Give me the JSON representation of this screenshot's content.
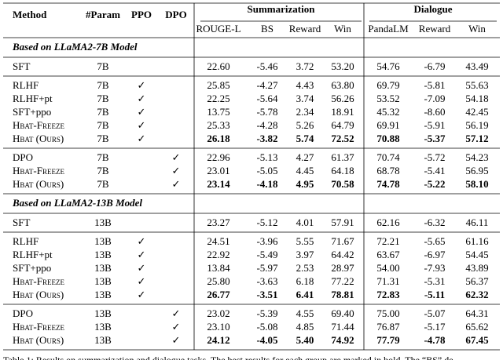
{
  "header": {
    "columns": [
      "Method",
      "#Param",
      "PPO",
      "DPO"
    ],
    "groups": [
      "Summarization",
      "Dialogue"
    ],
    "subcolumns": [
      "ROUGE-L",
      "BS",
      "Reward",
      "Win",
      "PandaLM",
      "Reward",
      "Win"
    ]
  },
  "sections": [
    {
      "title": "Based on LLaMA2-7B Model",
      "groups": [
        {
          "rows": [
            {
              "cells": [
                "SFT",
                "7B",
                null,
                null,
                "22.60",
                "-5.46",
                "3.72",
                "53.20",
                "54.76",
                "-6.79",
                "43.49"
              ],
              "bold": false
            }
          ]
        },
        {
          "rows": [
            {
              "cells": [
                "RLHF",
                "7B",
                "✓",
                null,
                "25.85",
                "-4.27",
                "4.43",
                "63.80",
                "69.79",
                "-5.81",
                "55.63"
              ],
              "bold": false
            },
            {
              "cells": [
                "RLHF+pt",
                "7B",
                "✓",
                null,
                "22.25",
                "-5.64",
                "3.74",
                "56.26",
                "53.52",
                "-7.09",
                "54.18"
              ],
              "bold": false
            },
            {
              "cells": [
                "SFT+ppo",
                "7B",
                "✓",
                null,
                "13.75",
                "-5.78",
                "2.34",
                "18.91",
                "45.32",
                "-8.60",
                "42.45"
              ],
              "bold": false
            },
            {
              "cells": [
                "Hbat-Freeze",
                "7B",
                "✓",
                null,
                "25.33",
                "-4.28",
                "5.26",
                "64.79",
                "69.91",
                "-5.91",
                "56.19"
              ],
              "bold": false
            },
            {
              "cells": [
                "Hbat (Ours)",
                "7B",
                "✓",
                null,
                "26.18",
                "-3.82",
                "5.74",
                "72.52",
                "70.88",
                "-5.37",
                "57.12"
              ],
              "bold": true
            }
          ]
        },
        {
          "rows": [
            {
              "cells": [
                "DPO",
                "7B",
                null,
                "✓",
                "22.96",
                "-5.13",
                "4.27",
                "61.37",
                "70.74",
                "-5.72",
                "54.23"
              ],
              "bold": false
            },
            {
              "cells": [
                "Hbat-Freeze",
                "7B",
                null,
                "✓",
                "23.01",
                "-5.05",
                "4.45",
                "64.18",
                "68.78",
                "-5.41",
                "56.95"
              ],
              "bold": false
            },
            {
              "cells": [
                "Hbat (Ours)",
                "7B",
                null,
                "✓",
                "23.14",
                "-4.18",
                "4.95",
                "70.58",
                "74.78",
                "-5.22",
                "58.10"
              ],
              "bold": true
            }
          ]
        }
      ]
    },
    {
      "title": "Based on LLaMA2-13B Model",
      "groups": [
        {
          "rows": [
            {
              "cells": [
                "SFT",
                "13B",
                null,
                null,
                "23.27",
                "-5.12",
                "4.01",
                "57.91",
                "62.16",
                "-6.32",
                "46.11"
              ],
              "bold": false
            }
          ]
        },
        {
          "rows": [
            {
              "cells": [
                "RLHF",
                "13B",
                "✓",
                null,
                "24.51",
                "-3.96",
                "5.55",
                "71.67",
                "72.21",
                "-5.65",
                "61.16"
              ],
              "bold": false
            },
            {
              "cells": [
                "RLHF+pt",
                "13B",
                "✓",
                null,
                "22.92",
                "-5.49",
                "3.97",
                "64.42",
                "63.67",
                "-6.97",
                "54.45"
              ],
              "bold": false
            },
            {
              "cells": [
                "SFT+ppo",
                "13B",
                "✓",
                null,
                "13.84",
                "-5.97",
                "2.53",
                "28.97",
                "54.00",
                "-7.93",
                "43.89"
              ],
              "bold": false
            },
            {
              "cells": [
                "Hbat-Freeze",
                "13B",
                "✓",
                null,
                "25.80",
                "-3.63",
                "6.18",
                "77.22",
                "71.31",
                "-5.31",
                "56.37"
              ],
              "bold": false
            },
            {
              "cells": [
                "Hbat (Ours)",
                "13B",
                "✓",
                null,
                "26.77",
                "-3.51",
                "6.41",
                "78.81",
                "72.83",
                "-5.11",
                "62.32"
              ],
              "bold": true
            }
          ]
        },
        {
          "rows": [
            {
              "cells": [
                "DPO",
                "13B",
                null,
                "✓",
                "23.02",
                "-5.39",
                "4.55",
                "69.40",
                "75.00",
                "-5.07",
                "64.31"
              ],
              "bold": false
            },
            {
              "cells": [
                "Hbat-Freeze",
                "13B",
                null,
                "✓",
                "23.10",
                "-5.08",
                "4.85",
                "71.44",
                "76.87",
                "-5.17",
                "65.62"
              ],
              "bold": false
            },
            {
              "cells": [
                "Hbat (Ours)",
                "13B",
                null,
                "✓",
                "24.12",
                "-4.05",
                "5.40",
                "74.92",
                "77.79",
                "-4.78",
                "67.45"
              ],
              "bold": true
            }
          ]
        }
      ]
    }
  ],
  "caption": "Table 1: Results on summarization and dialogue tasks. The best results for each group are marked in bold. The “BS” de"
}
